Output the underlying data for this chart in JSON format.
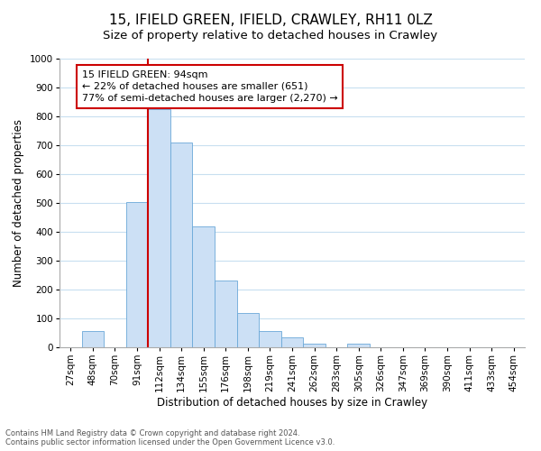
{
  "title": "15, IFIELD GREEN, IFIELD, CRAWLEY, RH11 0LZ",
  "subtitle": "Size of property relative to detached houses in Crawley",
  "xlabel": "Distribution of detached houses by size in Crawley",
  "ylabel": "Number of detached properties",
  "bin_labels": [
    "27sqm",
    "48sqm",
    "70sqm",
    "91sqm",
    "112sqm",
    "134sqm",
    "155sqm",
    "176sqm",
    "198sqm",
    "219sqm",
    "241sqm",
    "262sqm",
    "283sqm",
    "305sqm",
    "326sqm",
    "347sqm",
    "369sqm",
    "390sqm",
    "411sqm",
    "433sqm",
    "454sqm"
  ],
  "bar_heights": [
    0,
    57,
    0,
    503,
    826,
    710,
    418,
    232,
    118,
    57,
    35,
    13,
    0,
    13,
    0,
    0,
    0,
    0,
    0,
    0,
    0
  ],
  "bar_color": "#cce0f5",
  "bar_edge_color": "#6aa8d8",
  "vline_pos": 3.5,
  "annotation_title": "15 IFIELD GREEN: 94sqm",
  "annotation_line1": "← 22% of detached houses are smaller (651)",
  "annotation_line2": "77% of semi-detached houses are larger (2,270) →",
  "annotation_box_color": "#ffffff",
  "annotation_box_edge": "#cc0000",
  "vline_color": "#cc0000",
  "ylim": [
    0,
    1000
  ],
  "yticks": [
    0,
    100,
    200,
    300,
    400,
    500,
    600,
    700,
    800,
    900,
    1000
  ],
  "footer1": "Contains HM Land Registry data © Crown copyright and database right 2024.",
  "footer2": "Contains public sector information licensed under the Open Government Licence v3.0.",
  "title_fontsize": 11,
  "subtitle_fontsize": 9.5,
  "tick_fontsize": 7.5,
  "label_fontsize": 8.5,
  "annotation_fontsize": 8,
  "footer_fontsize": 6
}
